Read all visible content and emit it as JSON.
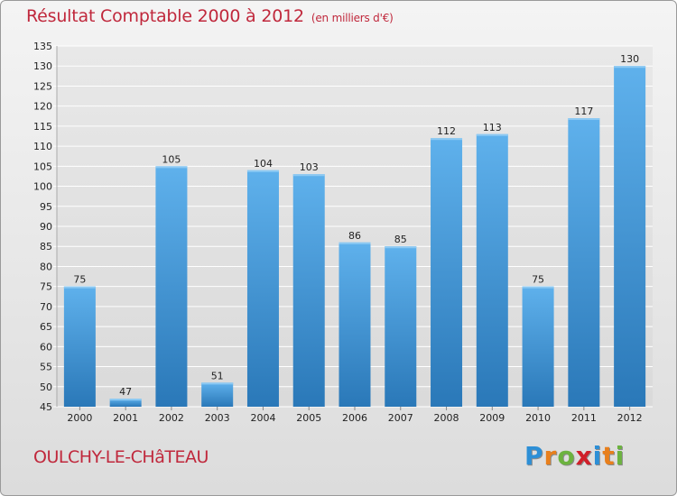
{
  "header": {
    "title": "Résultat Comptable 2000 à 2012",
    "unit": "(en milliers d'€)"
  },
  "location": "OULCHY-LE-CHâTEAU",
  "brand": {
    "letters": [
      "P",
      "r",
      "o",
      "x",
      "i",
      "t",
      "i"
    ],
    "colors": [
      "#2d8fd6",
      "#e87f1c",
      "#6cb33f",
      "#d0202a",
      "#2d8fd6",
      "#e87f1c",
      "#6cb33f"
    ]
  },
  "chart_data": {
    "type": "bar",
    "title": "Résultat Comptable 2000 à 2012",
    "subtitle": "(en milliers d'€)",
    "categories": [
      "2000",
      "2001",
      "2002",
      "2003",
      "2004",
      "2005",
      "2006",
      "2007",
      "2008",
      "2009",
      "2010",
      "2011",
      "2012"
    ],
    "values": [
      75,
      47,
      105,
      51,
      104,
      103,
      86,
      85,
      112,
      113,
      75,
      117,
      130
    ],
    "data_labels": [
      "75",
      "47",
      "105",
      "51",
      "104",
      "103",
      "86",
      "85",
      "112",
      "113",
      "75",
      "117",
      "130"
    ],
    "ylim": [
      45,
      135
    ],
    "yticks": [
      "45",
      "50",
      "55",
      "60",
      "65",
      "70",
      "75",
      "80",
      "85",
      "90",
      "95",
      "100",
      "105",
      "110",
      "115",
      "120",
      "125",
      "130",
      "135"
    ],
    "grid": true,
    "bar_color": "#4a9fe0",
    "xlabel": "",
    "ylabel": ""
  }
}
